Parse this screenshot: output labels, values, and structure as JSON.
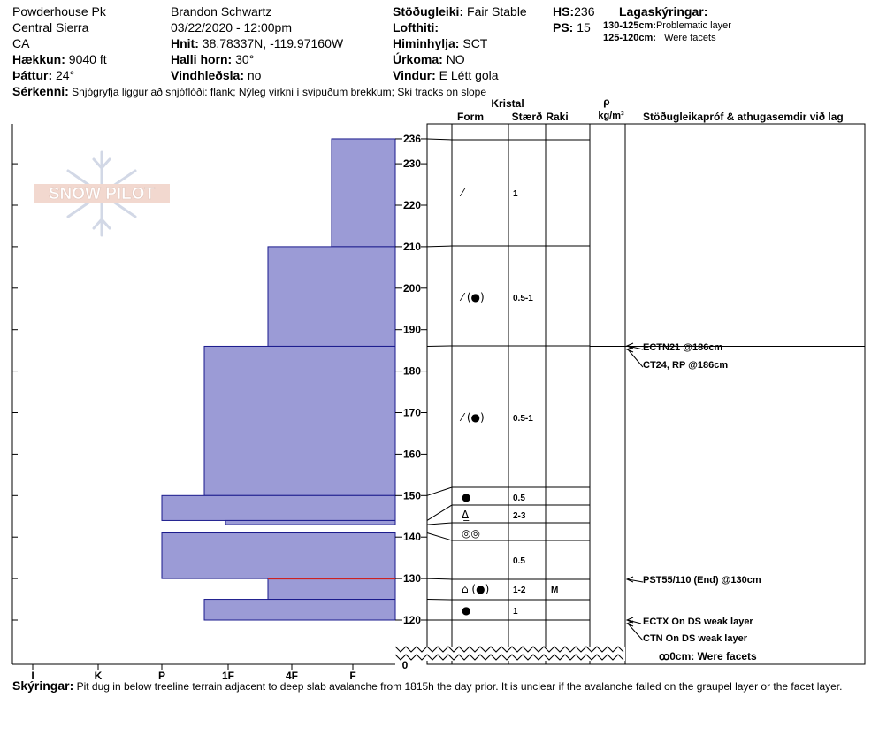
{
  "header": {
    "location": "Powderhouse Pk",
    "region": "Central Sierra",
    "state": "CA",
    "elevation_label": "Hækkun:",
    "elevation_value": "9040 ft",
    "aspect_label": "Þáttur:",
    "aspect_value": "24°",
    "observer": "Brandon Schwartz",
    "datetime": "03/22/2020 - 12:00pm",
    "coords_label": "Hnit:",
    "coords_value": "38.78337N, -119.97160W",
    "slope_label": "Halli horn:",
    "slope_value": "30°",
    "wind_loading_label": "Vindhleðsla:",
    "wind_loading_value": "no",
    "stability_label": "Stöðugleiki:",
    "stability_value": "Fair Stable",
    "air_temp_label": "Lofthiti:",
    "sky_label": "Himinhylja:",
    "sky_value": "SCT",
    "precip_label": "Úrkoma:",
    "precip_value": "NO",
    "wind_label": "Vindur:",
    "wind_value": "E Létt gola",
    "hs_label": "HS:",
    "hs_value": "236",
    "ps_label": "PS:",
    "ps_value": "15",
    "layer_notes_title": "Lagaskýringar:",
    "layer_note_1_range": "130-125cm:",
    "layer_note_1_text": "Problematic layer",
    "layer_note_2_range": "125-120cm:",
    "layer_note_2_text": "Were facets",
    "features_label": "Sérkenni:",
    "features_text": "Snjógryfja liggur að snjóflóði: flank; Nýleg virkni í svipuðum brekkum; Ski tracks on slope"
  },
  "columns": {
    "crystal": "Kristal",
    "form": "Form",
    "size": "Stærð",
    "moisture": "Raki",
    "density_symbol": "ρ",
    "density_unit": "kg/m³",
    "tests_title": "Stöðugleikapróf & athugasemdir við lag"
  },
  "hardness_ticks": [
    "I",
    "K",
    "P",
    "1F",
    "4F",
    "F"
  ],
  "depth_ticks": [
    "120",
    "130",
    "140",
    "150",
    "160",
    "170",
    "180",
    "190",
    "200",
    "210",
    "220",
    "230"
  ],
  "depth_top_label": "236",
  "depth_bottom_label": "0",
  "logo_text": "SNOW PILOT",
  "chart_data": {
    "type": "snow-profile",
    "y_unit": "cm",
    "ylim": [
      115,
      237
    ],
    "hardness_scale": [
      "F",
      "4F",
      "1F",
      "P",
      "K",
      "I"
    ],
    "layers": [
      {
        "top": 236,
        "bottom": 210,
        "hardness": "F",
        "form": "/",
        "size": "1"
      },
      {
        "top": 210,
        "bottom": 186,
        "hardness": "4F",
        "form": "/(●)",
        "size": "0.5-1"
      },
      {
        "top": 186,
        "bottom": 150,
        "hardness": "1F",
        "form": "/(●)",
        "size": "0.5-1"
      },
      {
        "top": 150,
        "bottom": 144,
        "hardness": "P",
        "form": "●",
        "size": "0.5"
      },
      {
        "top": 144,
        "bottom": 143,
        "hardness": "1F-",
        "form": "ᐃ-",
        "size": "2-3"
      },
      {
        "top": 141,
        "bottom": 130,
        "hardness": "P",
        "form": "◎◎",
        "size": "0.5"
      },
      {
        "top": 130,
        "bottom": 125,
        "hardness": "4F",
        "form": "ᐱ(●)",
        "size": "1-2",
        "moisture": "M",
        "problematic": true
      },
      {
        "top": 125,
        "bottom": 120,
        "hardness": "1F",
        "form": "●",
        "size": "1"
      }
    ],
    "tests": [
      {
        "depth": 186,
        "text": "ECTN21 @186cm"
      },
      {
        "depth": 186,
        "text": "CT24, RP @186cm"
      },
      {
        "depth": 130,
        "text": "PST55/110 (End) @130cm"
      },
      {
        "depth": 120,
        "text": "ECTX  On DS weak layer"
      },
      {
        "depth": 120,
        "text": "CTN  On DS weak layer"
      }
    ],
    "bottom_note": "ꝏ0cm:  Were facets"
  },
  "footer": {
    "notes_label": "Skýringar:",
    "notes_text": "Pit dug in below treeline terrain adjacent to deep slab avalanche from 1815h the day prior. It is unclear if the avalanche failed on the graupel layer or the facet layer."
  }
}
